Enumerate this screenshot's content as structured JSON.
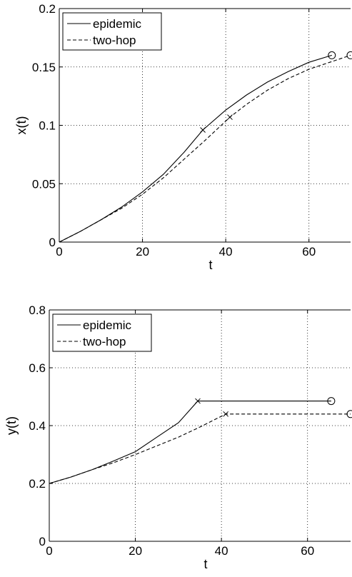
{
  "chart_data": [
    {
      "type": "line",
      "xlabel": "t",
      "ylabel": "x(t)",
      "xlim": [
        0,
        70
      ],
      "ylim": [
        0,
        0.2
      ],
      "xticks": [
        0,
        20,
        40,
        60
      ],
      "yticks": [
        0,
        0.05,
        0.1,
        0.15,
        0.2
      ],
      "xtick_labels": [
        "0",
        "20",
        "40",
        "60"
      ],
      "ytick_labels": [
        "0",
        "0.05",
        "0.1",
        "0.15",
        "0.2"
      ],
      "grid": true,
      "legend_position": "top-left",
      "series": [
        {
          "name": "epidemic",
          "style": "solid",
          "color": "#000000",
          "x": [
            0,
            5,
            10,
            15,
            20,
            25,
            30,
            34.5,
            40,
            45,
            50,
            55,
            60,
            65.5
          ],
          "y": [
            0,
            0.009,
            0.019,
            0.03,
            0.043,
            0.058,
            0.077,
            0.096,
            0.113,
            0.126,
            0.137,
            0.146,
            0.154,
            0.16
          ],
          "cross_marker": {
            "x": 34.5,
            "y": 0.096
          },
          "circle_marker": {
            "x": 65.5,
            "y": 0.16
          }
        },
        {
          "name": "two-hop",
          "style": "dashed",
          "color": "#000000",
          "x": [
            0,
            5,
            10,
            15,
            20,
            25,
            30,
            35,
            41,
            45,
            50,
            55,
            60,
            65,
            70
          ],
          "y": [
            0,
            0.009,
            0.019,
            0.029,
            0.041,
            0.055,
            0.071,
            0.087,
            0.107,
            0.118,
            0.13,
            0.14,
            0.148,
            0.154,
            0.16
          ],
          "cross_marker": {
            "x": 41,
            "y": 0.107
          },
          "circle_marker": {
            "x": 70,
            "y": 0.16
          }
        }
      ]
    },
    {
      "type": "line",
      "xlabel": "t",
      "ylabel": "y(t)",
      "xlim": [
        0,
        70
      ],
      "ylim": [
        0,
        0.8
      ],
      "xticks": [
        0,
        20,
        40,
        60
      ],
      "yticks": [
        0,
        0.2,
        0.4,
        0.6,
        0.8
      ],
      "xtick_labels": [
        "0",
        "20",
        "40",
        "60"
      ],
      "ytick_labels": [
        "0",
        "0.2",
        "0.4",
        "0.6",
        "0.8"
      ],
      "grid": true,
      "legend_position": "top-left",
      "series": [
        {
          "name": "epidemic",
          "style": "solid",
          "color": "#000000",
          "x": [
            0,
            5,
            10,
            15,
            20,
            25,
            30,
            34.5,
            40,
            50,
            60,
            65.5
          ],
          "y": [
            0.2,
            0.222,
            0.248,
            0.278,
            0.31,
            0.36,
            0.41,
            0.485,
            0.485,
            0.485,
            0.485,
            0.485
          ],
          "cross_marker": {
            "x": 34.5,
            "y": 0.485
          },
          "circle_marker": {
            "x": 65.5,
            "y": 0.485
          }
        },
        {
          "name": "two-hop",
          "style": "dashed",
          "color": "#000000",
          "x": [
            0,
            5,
            10,
            15,
            20,
            25,
            30,
            35,
            41,
            50,
            60,
            70
          ],
          "y": [
            0.2,
            0.222,
            0.248,
            0.272,
            0.3,
            0.33,
            0.36,
            0.395,
            0.44,
            0.44,
            0.44,
            0.44
          ],
          "cross_marker": {
            "x": 41,
            "y": 0.44
          },
          "circle_marker": {
            "x": 70,
            "y": 0.44
          }
        }
      ]
    }
  ]
}
